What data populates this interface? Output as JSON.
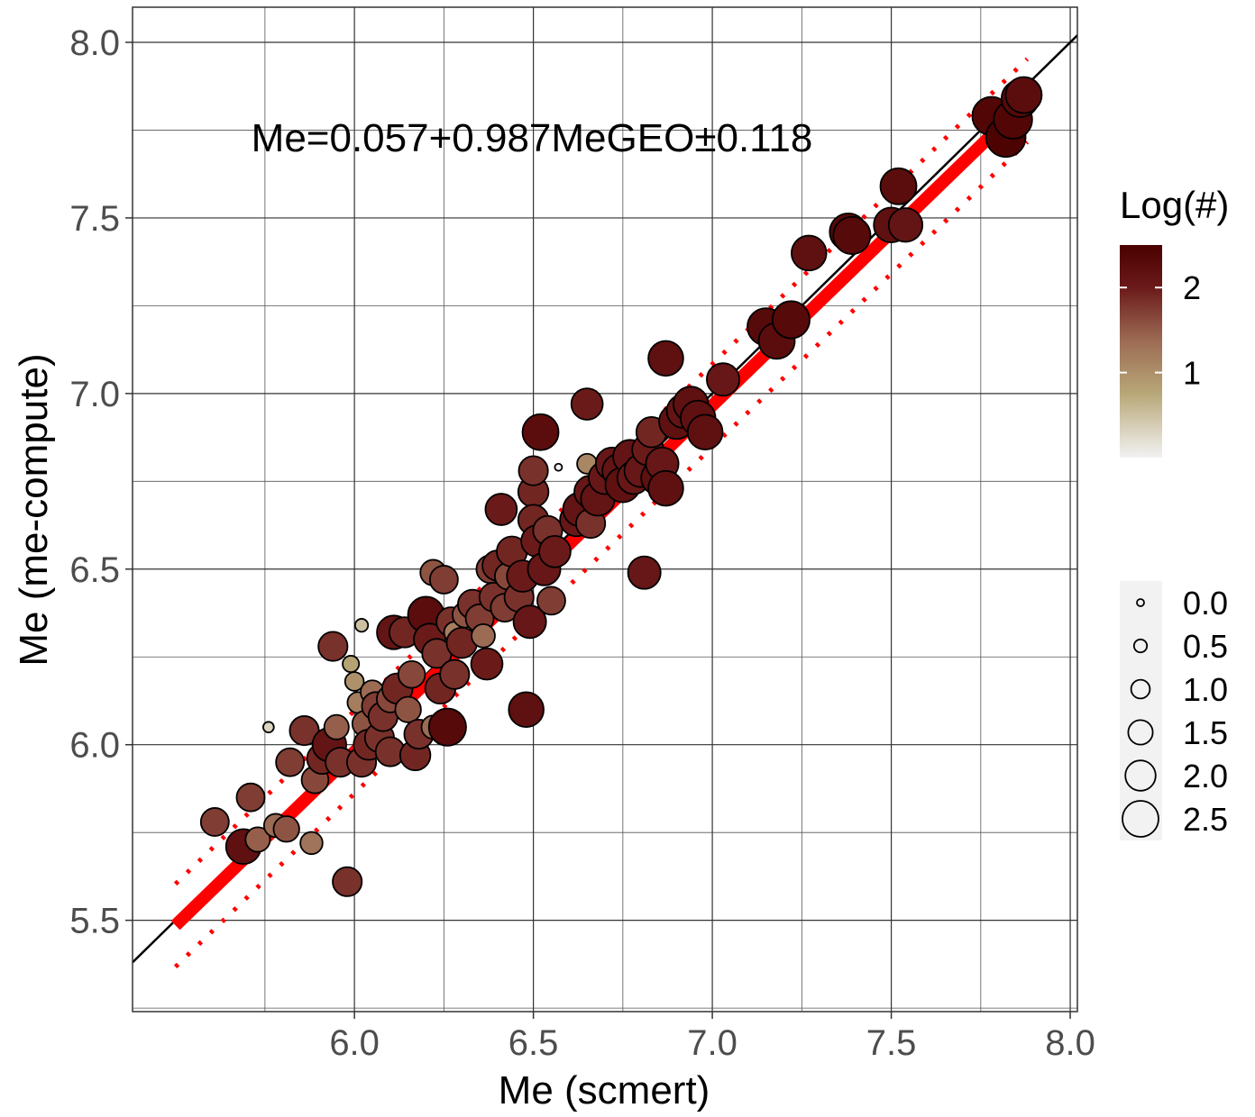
{
  "chart_data": {
    "type": "scatter",
    "xlabel": "Me (scmert)",
    "ylabel": "Me (me-compute)",
    "xlim": [
      5.38,
      8.02
    ],
    "ylim": [
      5.24,
      8.1
    ],
    "x_ticks": [
      "6.0",
      "6.5",
      "7.0",
      "7.5",
      "8.0"
    ],
    "y_ticks": [
      "5.5",
      "6.0",
      "6.5",
      "7.0",
      "7.5",
      "8.0"
    ],
    "grid": true,
    "annotation": "Me=0.057+0.987MeGEO±0.118",
    "identity_line": {
      "x": [
        5.38,
        8.02
      ],
      "y": [
        5.38,
        8.02
      ],
      "color": "#000000"
    },
    "fit_line": {
      "intercept": 0.057,
      "slope": 0.987,
      "x_range": [
        5.5,
        7.88
      ],
      "color": "#ff0000"
    },
    "interval_lines": {
      "offset": 0.118,
      "color": "#ff0000",
      "style": "dotted"
    },
    "color_legend": {
      "title": "Log(#)",
      "labels": [
        "2",
        "1"
      ],
      "label_values": [
        2,
        1
      ],
      "range": [
        0,
        2.5
      ],
      "colors": [
        "#f2f2f2",
        "#b8a878",
        "#9c6b54",
        "#6b1a1a",
        "#4a0000"
      ]
    },
    "size_legend": {
      "labels": [
        "0.0",
        "0.5",
        "1.0",
        "1.5",
        "2.0",
        "2.5"
      ],
      "values": [
        0,
        0.5,
        1.0,
        1.5,
        2.0,
        2.5
      ]
    },
    "points": [
      {
        "x": 5.61,
        "y": 5.78,
        "c": 1.8
      },
      {
        "x": 5.69,
        "y": 5.71,
        "c": 2.4
      },
      {
        "x": 5.71,
        "y": 5.85,
        "c": 1.8
      },
      {
        "x": 5.73,
        "y": 5.73,
        "c": 1.5
      },
      {
        "x": 5.76,
        "y": 6.05,
        "c": 0.3
      },
      {
        "x": 5.78,
        "y": 5.77,
        "c": 1.4
      },
      {
        "x": 5.81,
        "y": 5.76,
        "c": 1.6
      },
      {
        "x": 5.82,
        "y": 5.95,
        "c": 1.8
      },
      {
        "x": 5.86,
        "y": 6.04,
        "c": 1.9
      },
      {
        "x": 5.88,
        "y": 5.72,
        "c": 1.3
      },
      {
        "x": 5.89,
        "y": 5.9,
        "c": 1.7
      },
      {
        "x": 5.91,
        "y": 5.96,
        "c": 2.0
      },
      {
        "x": 5.93,
        "y": 6.0,
        "c": 2.3
      },
      {
        "x": 5.94,
        "y": 6.28,
        "c": 1.9
      },
      {
        "x": 5.95,
        "y": 6.05,
        "c": 1.5
      },
      {
        "x": 5.96,
        "y": 5.95,
        "c": 1.9
      },
      {
        "x": 5.98,
        "y": 5.61,
        "c": 1.9
      },
      {
        "x": 5.99,
        "y": 6.23,
        "c": 0.8
      },
      {
        "x": 6.0,
        "y": 6.18,
        "c": 1.0
      },
      {
        "x": 6.01,
        "y": 6.12,
        "c": 1.2
      },
      {
        "x": 6.02,
        "y": 6.34,
        "c": 0.5
      },
      {
        "x": 6.02,
        "y": 5.95,
        "c": 1.9
      },
      {
        "x": 6.03,
        "y": 6.06,
        "c": 1.6
      },
      {
        "x": 6.04,
        "y": 6.0,
        "c": 2.0
      },
      {
        "x": 6.05,
        "y": 6.15,
        "c": 1.4
      },
      {
        "x": 6.06,
        "y": 6.11,
        "c": 1.8
      },
      {
        "x": 6.07,
        "y": 6.02,
        "c": 1.9
      },
      {
        "x": 6.08,
        "y": 6.08,
        "c": 1.9
      },
      {
        "x": 6.1,
        "y": 6.13,
        "c": 1.7
      },
      {
        "x": 6.1,
        "y": 5.98,
        "c": 1.9
      },
      {
        "x": 6.11,
        "y": 6.32,
        "c": 2.3
      },
      {
        "x": 6.12,
        "y": 6.16,
        "c": 2.0
      },
      {
        "x": 6.14,
        "y": 6.32,
        "c": 2.0
      },
      {
        "x": 6.15,
        "y": 6.1,
        "c": 1.6
      },
      {
        "x": 6.16,
        "y": 6.2,
        "c": 1.7
      },
      {
        "x": 6.17,
        "y": 5.97,
        "c": 2.0
      },
      {
        "x": 6.18,
        "y": 6.03,
        "c": 1.9
      },
      {
        "x": 6.2,
        "y": 6.37,
        "c": 2.5
      },
      {
        "x": 6.21,
        "y": 6.3,
        "c": 2.1
      },
      {
        "x": 6.22,
        "y": 6.05,
        "c": 1.4
      },
      {
        "x": 6.22,
        "y": 6.49,
        "c": 1.6
      },
      {
        "x": 6.23,
        "y": 6.26,
        "c": 1.9
      },
      {
        "x": 6.24,
        "y": 6.16,
        "c": 2.0
      },
      {
        "x": 6.25,
        "y": 6.47,
        "c": 1.8
      },
      {
        "x": 6.26,
        "y": 6.05,
        "c": 2.6
      },
      {
        "x": 6.27,
        "y": 6.35,
        "c": 1.9
      },
      {
        "x": 6.28,
        "y": 6.32,
        "c": 1.2
      },
      {
        "x": 6.28,
        "y": 6.2,
        "c": 1.9
      },
      {
        "x": 6.3,
        "y": 6.29,
        "c": 2.0
      },
      {
        "x": 6.31,
        "y": 6.37,
        "c": 1.6
      },
      {
        "x": 6.33,
        "y": 6.4,
        "c": 1.9
      },
      {
        "x": 6.35,
        "y": 6.36,
        "c": 1.8
      },
      {
        "x": 6.36,
        "y": 6.31,
        "c": 1.4
      },
      {
        "x": 6.37,
        "y": 6.23,
        "c": 2.1
      },
      {
        "x": 6.38,
        "y": 6.5,
        "c": 1.8
      },
      {
        "x": 6.39,
        "y": 6.42,
        "c": 1.9
      },
      {
        "x": 6.4,
        "y": 6.51,
        "c": 2.0
      },
      {
        "x": 6.41,
        "y": 6.67,
        "c": 2.1
      },
      {
        "x": 6.42,
        "y": 6.39,
        "c": 1.8
      },
      {
        "x": 6.43,
        "y": 6.48,
        "c": 1.7
      },
      {
        "x": 6.44,
        "y": 6.55,
        "c": 2.0
      },
      {
        "x": 6.46,
        "y": 6.42,
        "c": 1.9
      },
      {
        "x": 6.47,
        "y": 6.48,
        "c": 2.1
      },
      {
        "x": 6.48,
        "y": 6.1,
        "c": 2.4
      },
      {
        "x": 6.49,
        "y": 6.35,
        "c": 2.2
      },
      {
        "x": 6.5,
        "y": 6.72,
        "c": 2.0
      },
      {
        "x": 6.5,
        "y": 6.78,
        "c": 1.9
      },
      {
        "x": 6.5,
        "y": 6.64,
        "c": 2.0
      },
      {
        "x": 6.51,
        "y": 6.58,
        "c": 2.1
      },
      {
        "x": 6.52,
        "y": 6.89,
        "c": 2.5
      },
      {
        "x": 6.53,
        "y": 6.5,
        "c": 2.2
      },
      {
        "x": 6.54,
        "y": 6.61,
        "c": 1.9
      },
      {
        "x": 6.55,
        "y": 6.41,
        "c": 1.8
      },
      {
        "x": 6.56,
        "y": 6.55,
        "c": 2.1
      },
      {
        "x": 6.57,
        "y": 6.79,
        "c": 0.0
      },
      {
        "x": 6.62,
        "y": 6.64,
        "c": 2.2
      },
      {
        "x": 6.63,
        "y": 6.67,
        "c": 2.3
      },
      {
        "x": 6.65,
        "y": 6.8,
        "c": 1.1
      },
      {
        "x": 6.65,
        "y": 6.97,
        "c": 2.1
      },
      {
        "x": 6.66,
        "y": 6.72,
        "c": 2.2
      },
      {
        "x": 6.66,
        "y": 6.63,
        "c": 1.9
      },
      {
        "x": 6.68,
        "y": 6.7,
        "c": 2.3
      },
      {
        "x": 6.7,
        "y": 6.76,
        "c": 2.2
      },
      {
        "x": 6.72,
        "y": 6.8,
        "c": 2.2
      },
      {
        "x": 6.74,
        "y": 6.78,
        "c": 2.3
      },
      {
        "x": 6.75,
        "y": 6.74,
        "c": 2.4
      },
      {
        "x": 6.77,
        "y": 6.82,
        "c": 2.3
      },
      {
        "x": 6.78,
        "y": 6.76,
        "c": 2.2
      },
      {
        "x": 6.8,
        "y": 6.78,
        "c": 2.2
      },
      {
        "x": 6.81,
        "y": 6.49,
        "c": 2.2
      },
      {
        "x": 6.82,
        "y": 6.84,
        "c": 2.1
      },
      {
        "x": 6.83,
        "y": 6.89,
        "c": 2.0
      },
      {
        "x": 6.85,
        "y": 6.76,
        "c": 2.4
      },
      {
        "x": 6.86,
        "y": 6.8,
        "c": 2.2
      },
      {
        "x": 6.87,
        "y": 6.73,
        "c": 2.4
      },
      {
        "x": 6.87,
        "y": 7.1,
        "c": 2.4
      },
      {
        "x": 6.9,
        "y": 6.92,
        "c": 2.4
      },
      {
        "x": 6.92,
        "y": 6.95,
        "c": 2.3
      },
      {
        "x": 6.94,
        "y": 6.97,
        "c": 2.4
      },
      {
        "x": 6.96,
        "y": 6.93,
        "c": 2.4
      },
      {
        "x": 6.98,
        "y": 6.89,
        "c": 2.4
      },
      {
        "x": 7.03,
        "y": 7.04,
        "c": 2.2
      },
      {
        "x": 7.15,
        "y": 7.19,
        "c": 2.6
      },
      {
        "x": 7.18,
        "y": 7.15,
        "c": 2.5
      },
      {
        "x": 7.22,
        "y": 7.21,
        "c": 2.6
      },
      {
        "x": 7.27,
        "y": 7.4,
        "c": 2.4
      },
      {
        "x": 7.38,
        "y": 7.46,
        "c": 2.6
      },
      {
        "x": 7.39,
        "y": 7.45,
        "c": 2.6
      },
      {
        "x": 7.5,
        "y": 7.48,
        "c": 2.4
      },
      {
        "x": 7.52,
        "y": 7.59,
        "c": 2.5
      },
      {
        "x": 7.54,
        "y": 7.48,
        "c": 2.3
      },
      {
        "x": 7.78,
        "y": 7.79,
        "c": 2.7
      },
      {
        "x": 7.82,
        "y": 7.73,
        "c": 2.8
      },
      {
        "x": 7.84,
        "y": 7.78,
        "c": 2.7
      },
      {
        "x": 7.86,
        "y": 7.84,
        "c": 2.6
      },
      {
        "x": 7.87,
        "y": 7.85,
        "c": 2.5
      }
    ]
  }
}
